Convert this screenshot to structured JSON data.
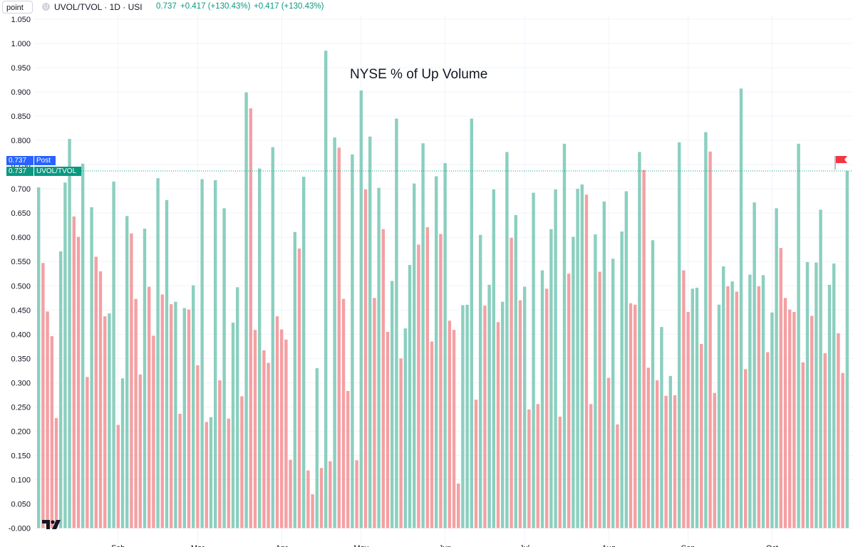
{
  "header": {
    "interval_input": "point",
    "eye_glyph": "U",
    "symbol": "UVOL/TVOL · 1D · USI",
    "last": "0.737",
    "change": "+0.417 (+130.43%)",
    "change2": "+0.417 (+130.43%)"
  },
  "colors": {
    "up": "#8bcfbf",
    "down": "#f4a0a3",
    "up_label": "#089981",
    "post": "#2962ff",
    "flag": "#f23645"
  },
  "price_labels": {
    "post_value": "0.737",
    "post_text": "Post",
    "series_value": "0.737",
    "series_text": "UVOL/TVOL"
  },
  "chart_data": {
    "type": "bar",
    "title": "NYSE % of Up Volume",
    "xlabel": "",
    "ylabel": "",
    "ylim": [
      -0.008,
      1.05
    ],
    "current_value": 0.737,
    "y_ticks": [
      "1.050",
      "1.000",
      "0.950",
      "0.900",
      "0.850",
      "0.800",
      "0.750",
      "0.700",
      "0.650",
      "0.600",
      "0.550",
      "0.500",
      "0.450",
      "0.400",
      "0.350",
      "0.300",
      "0.250",
      "0.200",
      "0.150",
      "0.100",
      "0.050",
      "-0.000"
    ],
    "x_tick_labels": [
      "Feb",
      "Mar",
      "Apr",
      "May",
      "Jun",
      "Jul",
      "Aug",
      "Sep",
      "Oct"
    ],
    "x_tick_bar_index": [
      18,
      36,
      55,
      73,
      92,
      110,
      129,
      147,
      166
    ],
    "values": [
      0.703,
      0.547,
      0.447,
      0.396,
      0.227,
      0.571,
      0.713,
      0.803,
      0.643,
      0.601,
      0.752,
      0.312,
      0.662,
      0.56,
      0.53,
      0.437,
      0.443,
      0.715,
      0.213,
      0.309,
      0.644,
      0.608,
      0.473,
      0.317,
      0.618,
      0.498,
      0.397,
      0.722,
      0.482,
      0.677,
      0.462,
      0.467,
      0.236,
      0.454,
      0.451,
      0.501,
      0.336,
      0.72,
      0.219,
      0.229,
      0.718,
      0.305,
      0.66,
      0.226,
      0.424,
      0.497,
      0.272,
      0.899,
      0.866,
      0.409,
      0.742,
      0.367,
      0.341,
      0.786,
      0.437,
      0.41,
      0.389,
      0.141,
      0.611,
      0.577,
      0.725,
      0.119,
      0.07,
      0.33,
      0.124,
      0.985,
      0.138,
      0.806,
      0.785,
      0.473,
      0.283,
      0.771,
      0.14,
      0.903,
      0.699,
      0.808,
      0.475,
      0.702,
      0.617,
      0.405,
      0.51,
      0.845,
      0.35,
      0.412,
      0.543,
      0.711,
      0.585,
      0.794,
      0.621,
      0.385,
      0.726,
      0.607,
      0.753,
      0.428,
      0.409,
      0.092,
      0.46,
      0.461,
      0.845,
      0.265,
      0.605,
      0.459,
      0.502,
      0.699,
      0.425,
      0.467,
      0.776,
      0.599,
      0.646,
      0.47,
      0.498,
      0.245,
      0.692,
      0.256,
      0.532,
      0.494,
      0.617,
      0.699,
      0.23,
      0.793,
      0.525,
      0.601,
      0.7,
      0.709,
      0.688,
      0.256,
      0.606,
      0.529,
      0.674,
      0.31,
      0.556,
      0.214,
      0.612,
      0.695,
      0.464,
      0.461,
      0.776,
      0.739,
      0.331,
      0.594,
      0.305,
      0.415,
      0.273,
      0.314,
      0.274,
      0.796,
      0.532,
      0.446,
      0.494,
      0.496,
      0.38,
      0.817,
      0.777,
      0.279,
      0.461,
      0.54,
      0.499,
      0.509,
      0.488,
      0.907,
      0.328,
      0.523,
      0.672,
      0.499,
      0.522,
      0.363,
      0.445,
      0.66,
      0.578,
      0.475,
      0.451,
      0.446,
      0.793,
      0.342,
      0.549,
      0.438,
      0.548,
      0.657,
      0.361,
      0.502,
      0.546,
      0.402,
      0.32,
      0.737
    ]
  }
}
